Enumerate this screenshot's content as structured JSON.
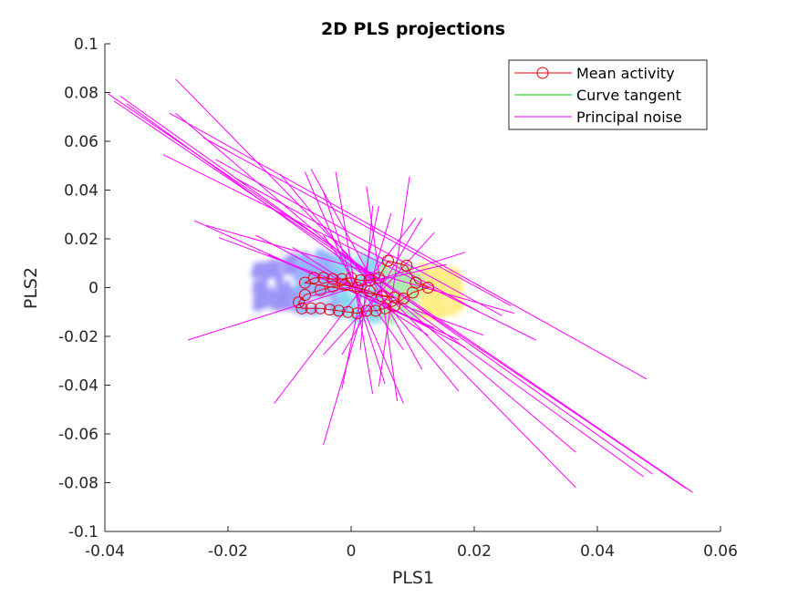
{
  "chart_data": {
    "type": "scatter",
    "title": "2D PLS projections",
    "xlabel": "PLS1",
    "ylabel": "PLS2",
    "xlim": [
      -0.04,
      0.06
    ],
    "ylim": [
      -0.1,
      0.1
    ],
    "x_ticks": [
      -0.04,
      -0.02,
      0,
      0.02,
      0.04,
      0.06
    ],
    "x_tick_labels": [
      "-0.04",
      "-0.02",
      "0",
      "0.02",
      "0.04",
      "0.06"
    ],
    "y_ticks": [
      -0.1,
      -0.08,
      -0.06,
      -0.04,
      -0.02,
      0,
      0.02,
      0.04,
      0.06,
      0.08,
      0.1
    ],
    "y_tick_labels": [
      "-0.1",
      "-0.08",
      "-0.06",
      "-0.04",
      "-0.02",
      "0",
      "0.02",
      "0.04",
      "0.06",
      "0.08",
      "0.1"
    ],
    "grid": false,
    "legend_position": "top-right",
    "colors": {
      "mean_activity": "#e8000b",
      "curve_tangent": "#00d000",
      "principal_noise": "#ff00ff",
      "cloud_gradient": [
        "#4b3cf0",
        "#3c78ff",
        "#28b8e0",
        "#6cd66c",
        "#ffe020"
      ]
    },
    "series": [
      {
        "name": "Mean activity",
        "marker": "circle",
        "points": [
          [
            -0.0075,
            0.002
          ],
          [
            -0.006,
            0.004
          ],
          [
            -0.0045,
            0.004
          ],
          [
            -0.003,
            0.0035
          ],
          [
            -0.0015,
            0.0035
          ],
          [
            0.0,
            0.004
          ],
          [
            0.0015,
            0.003
          ],
          [
            0.003,
            0.003
          ],
          [
            0.0045,
            0.004
          ],
          [
            0.006,
            0.011
          ],
          [
            0.009,
            0.009
          ],
          [
            0.0105,
            0.002
          ],
          [
            0.0125,
            0.0
          ],
          [
            0.01,
            -0.002
          ],
          [
            0.0085,
            -0.0045
          ],
          [
            0.007,
            -0.0075
          ],
          [
            0.0055,
            -0.0085
          ],
          [
            0.004,
            -0.0095
          ],
          [
            0.0025,
            -0.0095
          ],
          [
            0.001,
            -0.0105
          ],
          [
            -0.0005,
            -0.01
          ],
          [
            -0.002,
            -0.0095
          ],
          [
            -0.0035,
            -0.009
          ],
          [
            -0.005,
            -0.0085
          ],
          [
            -0.0065,
            -0.0085
          ],
          [
            -0.008,
            -0.0085
          ],
          [
            -0.0085,
            -0.006
          ],
          [
            -0.0075,
            -0.003
          ],
          [
            -0.005,
            -0.001
          ],
          [
            -0.003,
            0.0005
          ],
          [
            -0.001,
            0.001
          ],
          [
            0.001,
            0.0
          ],
          [
            0.003,
            -0.0015
          ],
          [
            0.005,
            -0.0035
          ],
          [
            0.007,
            -0.004
          ]
        ]
      },
      {
        "name": "Curve tangent",
        "segments": []
      },
      {
        "name": "Principal noise",
        "segments": [
          [
            [
              -0.0395,
              0.0795
            ],
            [
              0.0555,
              -0.084
            ]
          ],
          [
            [
              -0.0385,
              0.0765
            ],
            [
              0.0545,
              -0.0825
            ]
          ],
          [
            [
              -0.0375,
              0.0785
            ],
            [
              0.049,
              -0.0765
            ]
          ],
          [
            [
              -0.0365,
              0.0755
            ],
            [
              0.0475,
              -0.0775
            ]
          ],
          [
            [
              -0.0285,
              0.0855
            ],
            [
              0.0365,
              -0.082
            ]
          ],
          [
            [
              -0.0295,
              0.0715
            ],
            [
              0.048,
              -0.0375
            ]
          ],
          [
            [
              -0.0285,
              0.0715
            ],
            [
              0.0365,
              -0.0675
            ]
          ],
          [
            [
              -0.0305,
              0.0545
            ],
            [
              0.03,
              -0.0215
            ]
          ],
          [
            [
              -0.024,
              0.0615
            ],
            [
              0.026,
              -0.0075
            ]
          ],
          [
            [
              -0.022,
              0.0525
            ],
            [
              0.0245,
              -0.0115
            ]
          ],
          [
            [
              -0.0185,
              0.0445
            ],
            [
              0.0205,
              -0.0095
            ]
          ],
          [
            [
              -0.0235,
              0.0255
            ],
            [
              0.0265,
              -0.0105
            ]
          ],
          [
            [
              -0.0215,
              0.0205
            ],
            [
              0.0215,
              -0.0195
            ]
          ],
          [
            [
              -0.0255,
              0.0275
            ],
            [
              0.0175,
              -0.0215
            ]
          ],
          [
            [
              -0.0115,
              0.0465
            ],
            [
              0.0175,
              -0.0425
            ]
          ],
          [
            [
              -0.0075,
              0.0475
            ],
            [
              0.0085,
              -0.0475
            ]
          ],
          [
            [
              -0.0065,
              0.0485
            ],
            [
              0.0115,
              -0.0335
            ]
          ],
          [
            [
              -0.0045,
              0.0395
            ],
            [
              0.0055,
              -0.0395
            ]
          ],
          [
            [
              -0.0025,
              0.0475
            ],
            [
              0.0035,
              -0.0435
            ]
          ],
          [
            [
              0.0025,
              0.0415
            ],
            [
              0.0075,
              -0.0465
            ]
          ],
          [
            [
              0.0095,
              0.0455
            ],
            [
              0.0045,
              -0.0405
            ]
          ],
          [
            [
              0.0115,
              0.0285
            ],
            [
              -0.0015,
              -0.0275
            ]
          ],
          [
            [
              0.0135,
              0.0225
            ],
            [
              -0.0045,
              -0.0275
            ]
          ],
          [
            [
              0.0105,
              0.0285
            ],
            [
              -0.0125,
              -0.0475
            ]
          ],
          [
            [
              0.0185,
              0.0145
            ],
            [
              -0.0265,
              -0.0215
            ]
          ],
          [
            [
              0.0155,
              0.0095
            ],
            [
              -0.0065,
              -0.0035
            ]
          ],
          [
            [
              0.0065,
              0.0305
            ],
            [
              -0.0045,
              -0.0645
            ]
          ],
          [
            [
              0.0045,
              0.0335
            ],
            [
              -0.0015,
              -0.0415
            ]
          ],
          [
            [
              0.0035,
              0.0335
            ],
            [
              0.0015,
              -0.0255
            ]
          ],
          [
            [
              -0.0045,
              0.0215
            ],
            [
              0.0085,
              -0.0255
            ]
          ],
          [
            [
              -0.0095,
              0.0165
            ],
            [
              0.0125,
              -0.0195
            ]
          ],
          [
            [
              -0.0135,
              0.0135
            ],
            [
              0.0135,
              -0.0165
            ]
          ],
          [
            [
              -0.0155,
              0.0215
            ],
            [
              0.0185,
              -0.0245
            ]
          ]
        ]
      }
    ]
  }
}
